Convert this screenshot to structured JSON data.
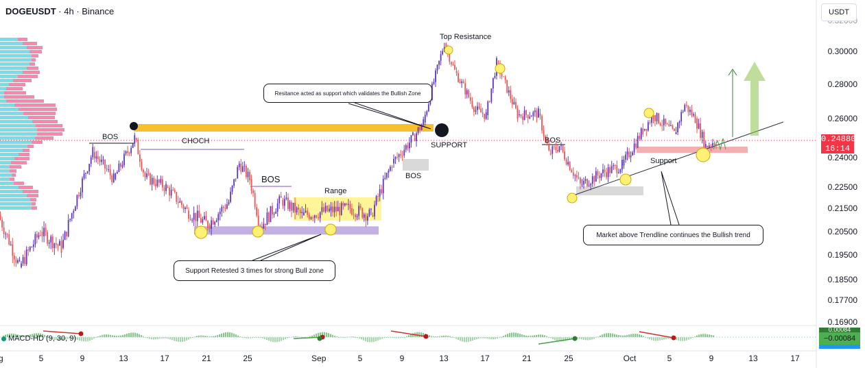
{
  "header": {
    "symbol": "DOGEUSDT",
    "separator1": " · ",
    "interval": "4h",
    "separator2": " · ",
    "exchange": "Binance"
  },
  "currency_button": "USDT",
  "price_label": {
    "price": "0.24880",
    "countdown": "16:14"
  },
  "macd": {
    "legend": "MACD-HD (9, 30, 9)",
    "value": "−0.00084",
    "value_top": "0.00084"
  },
  "annotations": {
    "bos1": "BOS",
    "choch": "CHOCH",
    "bos2": "BOS",
    "range": "Range",
    "top_resistance": "Top Resistance",
    "support": "SUPPORT",
    "bos3": "BOS",
    "bos4": "BOS",
    "support2": "Support",
    "note_resistance": "Resitance acted as support which validates the Bullish Zone",
    "note_retest": "Support Retested 3 times for strong Bull zone",
    "note_trendline": "Market above Trendline continues the Bullish trend"
  },
  "colors": {
    "up": "#5b35c8",
    "down": "#ef5350",
    "resistance_band": "#f8bc24",
    "support_band": "#b39ddb",
    "range_box": "#fff176",
    "pink_zone": "#f4a6aa",
    "gray_box": "#d9d9d9",
    "arrow": "#8bc34a",
    "vp_cyan": "#4dd0e1",
    "vp_pink": "#f06292",
    "macd_pos": "#81c784",
    "macd_neg": "#a5d6a7"
  },
  "chart_data": {
    "type": "candlestick",
    "title": "DOGEUSDT · 4h · Binance",
    "xlabel": "",
    "ylabel": "",
    "x_ticks": [
      "ug",
      "5",
      "9",
      "13",
      "17",
      "21",
      "25",
      "Sep",
      "5",
      "9",
      "13",
      "17",
      "21",
      "25",
      "Oct",
      "5",
      "9",
      "13",
      "17"
    ],
    "y_ticks": [
      "0.30000",
      "0.28000",
      "0.26000",
      "0.24000",
      "0.22500",
      "0.21500",
      "0.20500",
      "0.19500",
      "0.18500",
      "0.17700",
      "0.16900"
    ],
    "ylim": [
      0.168,
      0.313
    ],
    "last_price": 0.2488,
    "key_levels": {
      "resistance_turned_support": 0.2545,
      "range_support": 0.2055,
      "pink_support": 0.2434
    },
    "price_path": [
      {
        "date": "Aug 1",
        "price": 0.212
      },
      {
        "date": "Aug 3",
        "price": 0.19
      },
      {
        "date": "Aug 5",
        "price": 0.205
      },
      {
        "date": "Aug 7",
        "price": 0.198
      },
      {
        "date": "Aug 8",
        "price": 0.213
      },
      {
        "date": "Aug 10",
        "price": 0.243
      },
      {
        "date": "Aug 12",
        "price": 0.229
      },
      {
        "date": "Aug 14",
        "price": 0.25
      },
      {
        "date": "Aug 15",
        "price": 0.23
      },
      {
        "date": "Aug 17",
        "price": 0.225
      },
      {
        "date": "Aug 19",
        "price": 0.214
      },
      {
        "date": "Aug 21",
        "price": 0.208
      },
      {
        "date": "Aug 23",
        "price": 0.218
      },
      {
        "date": "Aug 24",
        "price": 0.237
      },
      {
        "date": "Aug 25",
        "price": 0.229
      },
      {
        "date": "Aug 26",
        "price": 0.207
      },
      {
        "date": "Aug 28",
        "price": 0.219
      },
      {
        "date": "Aug 30",
        "price": 0.212
      },
      {
        "date": "Sep 2",
        "price": 0.214
      },
      {
        "date": "Sep 4",
        "price": 0.215
      },
      {
        "date": "Sep 6",
        "price": 0.212
      },
      {
        "date": "Sep 8",
        "price": 0.237
      },
      {
        "date": "Sep 10",
        "price": 0.25
      },
      {
        "date": "Sep 11",
        "price": 0.258
      },
      {
        "date": "Sep 13",
        "price": 0.305
      },
      {
        "date": "Sep 14",
        "price": 0.288
      },
      {
        "date": "Sep 16",
        "price": 0.265
      },
      {
        "date": "Sep 17",
        "price": 0.262
      },
      {
        "date": "Sep 18",
        "price": 0.293
      },
      {
        "date": "Sep 20",
        "price": 0.262
      },
      {
        "date": "Sep 22",
        "price": 0.263
      },
      {
        "date": "Sep 23",
        "price": 0.242
      },
      {
        "date": "Sep 24",
        "price": 0.246
      },
      {
        "date": "Sep 26",
        "price": 0.226
      },
      {
        "date": "Sep 28",
        "price": 0.232
      },
      {
        "date": "Sep 30",
        "price": 0.236
      },
      {
        "date": "Oct 2",
        "price": 0.254
      },
      {
        "date": "Oct 3",
        "price": 0.262
      },
      {
        "date": "Oct 5",
        "price": 0.252
      },
      {
        "date": "Oct 6",
        "price": 0.268
      },
      {
        "date": "Oct 7",
        "price": 0.26
      },
      {
        "date": "Oct 8",
        "price": 0.246
      },
      {
        "date": "Oct 9",
        "price": 0.2488
      }
    ]
  }
}
